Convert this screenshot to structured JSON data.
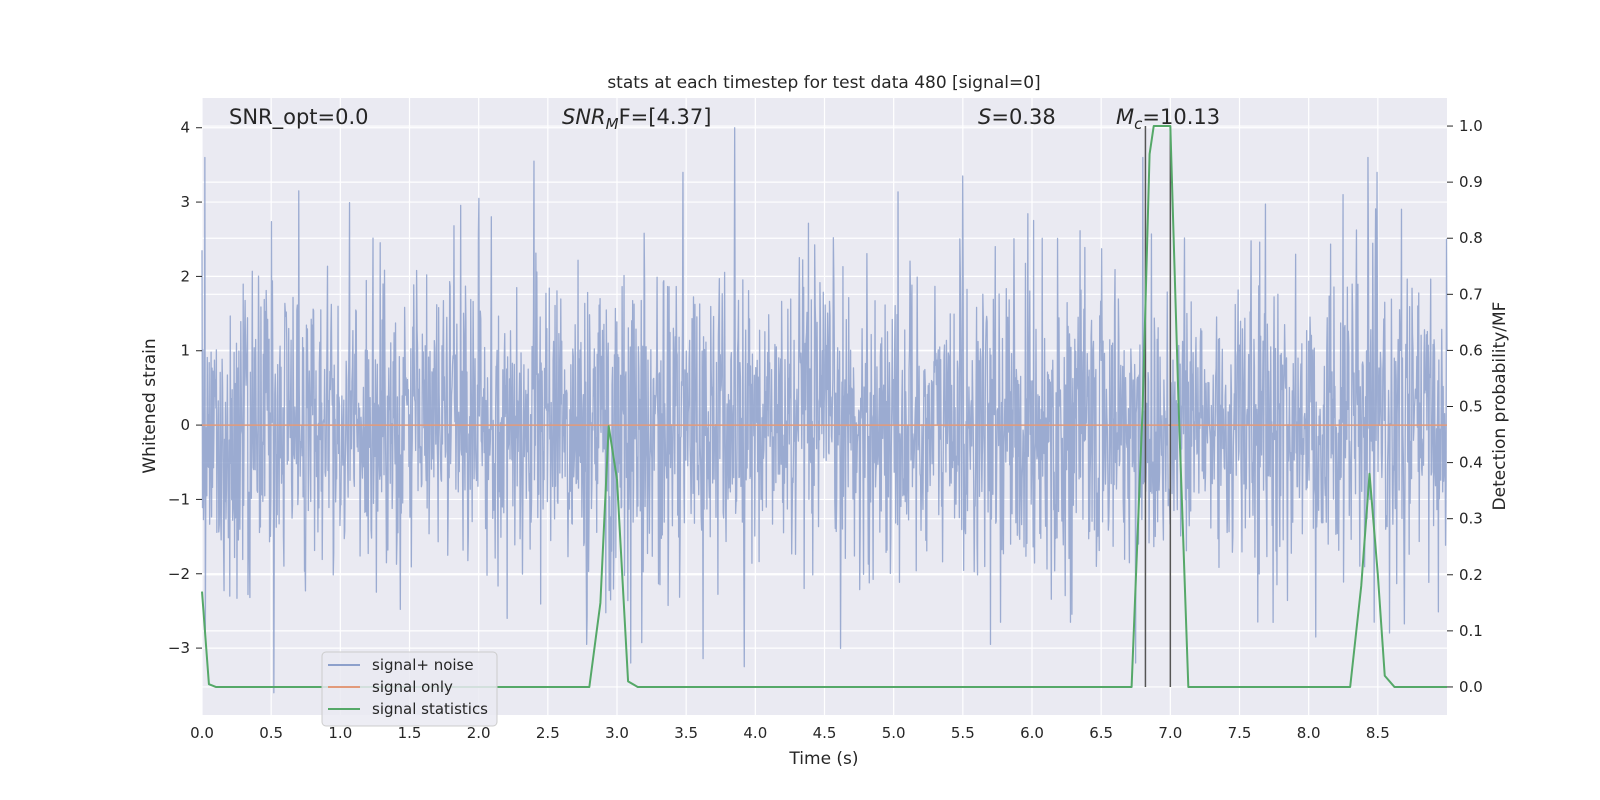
{
  "chart_data": {
    "type": "line",
    "title": "stats at each timestep for test data 480 [signal=0]",
    "xlabel": "Time (s)",
    "ylabel_left": "Whitened strain",
    "ylabel_right": "Detection probability/MF",
    "xlim": [
      0,
      9
    ],
    "ylim_left": [
      -3.9,
      4.4
    ],
    "ylim_right": [
      -0.05,
      1.05
    ],
    "x_ticks": [
      "0.0",
      "0.5",
      "1.0",
      "1.5",
      "2.0",
      "2.5",
      "3.0",
      "3.5",
      "4.0",
      "4.5",
      "5.0",
      "5.5",
      "6.0",
      "6.5",
      "7.0",
      "7.5",
      "8.0",
      "8.5"
    ],
    "y_left_ticks": [
      "−3",
      "−2",
      "−1",
      "0",
      "1",
      "2",
      "3",
      "4"
    ],
    "y_right_ticks": [
      "0.0",
      "0.1",
      "0.2",
      "0.3",
      "0.4",
      "0.5",
      "0.6",
      "0.7",
      "0.8",
      "0.9",
      "1.0"
    ],
    "grid": true,
    "background": "#eaeaf2",
    "annotations": {
      "snr_opt": "SNR_opt=0.0",
      "snr_mf_main": "SNR",
      "snr_mf_sub": "M",
      "snr_mf_tail": "F=[4.37]",
      "s_main": "S",
      "s_tail": "=0.38",
      "mc_main": "M",
      "mc_sub": "c",
      "mc_tail": "=10.13"
    },
    "vlines_x": [
      6.82,
      7.0
    ],
    "series": [
      {
        "name": "signal+ noise",
        "color": "#8da0cb",
        "axis": "left",
        "style": "noise",
        "x_range": [
          0,
          9
        ],
        "amplitude_std": 1.0,
        "peak_values": [
          [
            0.02,
            3.6
          ],
          [
            0.52,
            -3.6
          ],
          [
            0.7,
            3.15
          ],
          [
            2.0,
            3.05
          ],
          [
            2.4,
            3.55
          ],
          [
            2.78,
            -2.95
          ],
          [
            3.1,
            -3.2
          ],
          [
            3.85,
            4.0
          ],
          [
            3.92,
            -3.25
          ],
          [
            5.5,
            3.35
          ],
          [
            5.7,
            -2.95
          ],
          [
            6.8,
            3.6
          ],
          [
            6.75,
            -3.2
          ],
          [
            8.25,
            3.1
          ],
          [
            8.43,
            3.6
          ],
          [
            8.05,
            -2.85
          ]
        ]
      },
      {
        "name": "signal only",
        "color": "#e29a7a",
        "axis": "left",
        "x": [
          0,
          9
        ],
        "y": [
          0,
          0
        ]
      },
      {
        "name": "signal statistics",
        "color": "#55a868",
        "axis": "right",
        "x": [
          0.0,
          0.05,
          0.1,
          0.2,
          2.6,
          2.8,
          2.88,
          2.94,
          3.0,
          3.08,
          3.15,
          3.3,
          6.6,
          6.72,
          6.8,
          6.85,
          6.88,
          6.93,
          7.0,
          7.06,
          7.13,
          7.3,
          8.2,
          8.3,
          8.38,
          8.44,
          8.5,
          8.55,
          8.62,
          9.0
        ],
        "y": [
          0.17,
          0.005,
          0.0,
          0.0,
          0.0,
          0.0,
          0.15,
          0.465,
          0.37,
          0.01,
          0.0,
          0.0,
          0.0,
          0.0,
          0.5,
          0.95,
          1.0,
          1.0,
          1.0,
          0.5,
          0.0,
          0.0,
          0.0,
          0.0,
          0.18,
          0.38,
          0.2,
          0.02,
          0.0,
          0.0
        ]
      }
    ],
    "legend": {
      "placement": "lower-left",
      "entries": [
        "signal+ noise",
        "signal only",
        "signal statistics"
      ]
    }
  }
}
